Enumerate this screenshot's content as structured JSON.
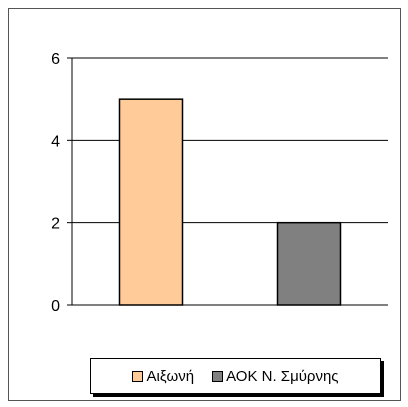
{
  "chart_data": {
    "type": "bar",
    "categories": [
      "Αιξωνή",
      "ΑΟΚ Ν. Σμύρνης"
    ],
    "values": [
      5,
      2
    ],
    "ylim": [
      0,
      6
    ],
    "yticks": [
      "0",
      "2",
      "4",
      "6"
    ],
    "grid": true,
    "legend_placement": "bottom",
    "colors": [
      "#FFCC99",
      "#808080"
    ],
    "title": "",
    "xlabel": "",
    "ylabel": ""
  },
  "legend": {
    "items": [
      {
        "label": "Αιξωνή",
        "color": "#FFCC99"
      },
      {
        "label": "ΑΟΚ Ν. Σμύρνης",
        "color": "#808080"
      }
    ]
  }
}
